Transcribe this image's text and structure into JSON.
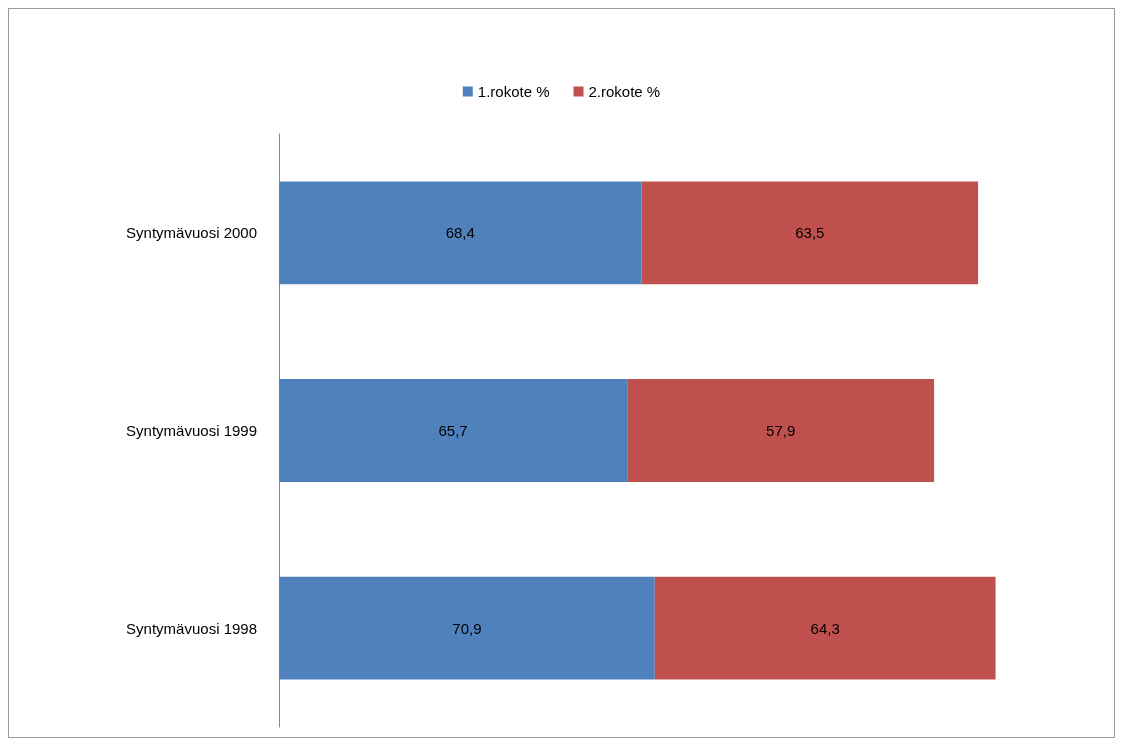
{
  "chart_data": {
    "type": "bar",
    "orientation": "horizontal",
    "stacked": true,
    "categories": [
      "Syntymävuosi 2000",
      "Syntymävuosi 1999",
      "Syntymävuosi 1998"
    ],
    "series": [
      {
        "name": "1.rokote %",
        "color": "#4f81bd",
        "values": [
          68.4,
          65.7,
          70.9
        ],
        "value_labels": [
          "68,4",
          "65,7",
          "70,9"
        ]
      },
      {
        "name": "2.rokote %",
        "color": "#c0504d",
        "values": [
          63.5,
          57.9,
          64.3
        ],
        "value_labels": [
          "63,5",
          "57,9",
          "64,3"
        ]
      }
    ],
    "legend": "top",
    "tick_labels": "y"
  }
}
